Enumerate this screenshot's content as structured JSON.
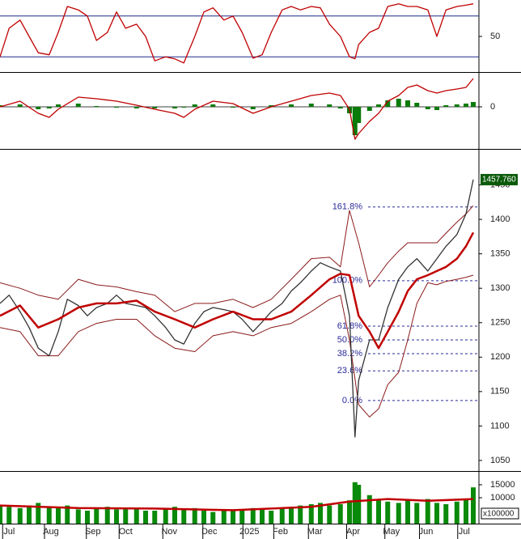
{
  "chart_data": [
    {
      "type": "line",
      "xlim": [
        0,
        262
      ],
      "ylim": [
        0,
        100
      ],
      "yticks": [
        50
      ],
      "hlines": [
        20,
        80
      ],
      "hline_color": "#1f2a8c",
      "series": [
        {
          "kind": "line",
          "color": "#c00000",
          "x": [
            0,
            5,
            11,
            16,
            21,
            27,
            32,
            37,
            43,
            48,
            53,
            59,
            64,
            69,
            75,
            80,
            85,
            91,
            96,
            101,
            107,
            112,
            117,
            123,
            128,
            133,
            139,
            144,
            149,
            155,
            160,
            165,
            171,
            176,
            181,
            187,
            192,
            195,
            197,
            203,
            208,
            213,
            219,
            224,
            229,
            235,
            240,
            245,
            251,
            256,
            260
          ],
          "values": [
            20,
            62,
            74,
            50,
            26,
            23,
            56,
            94,
            89,
            80,
            44,
            56,
            86,
            62,
            68,
            50,
            14,
            20,
            17,
            11,
            50,
            86,
            92,
            74,
            80,
            56,
            18,
            23,
            56,
            89,
            94,
            89,
            94,
            92,
            68,
            50,
            20,
            17,
            38,
            56,
            62,
            94,
            98,
            94,
            94,
            89,
            50,
            89,
            94,
            96,
            98
          ]
        }
      ]
    },
    {
      "type": "combo",
      "xlim": [
        0,
        262
      ],
      "ylim": [
        -50,
        40
      ],
      "yticks": [
        0
      ],
      "series": [
        {
          "kind": "bar",
          "color": "#0a7a0a",
          "x": [
            0,
            11,
            21,
            27,
            32,
            43,
            53,
            64,
            75,
            85,
            96,
            101,
            107,
            117,
            128,
            139,
            149,
            160,
            171,
            181,
            187,
            192,
            195,
            197,
            203,
            208,
            213,
            219,
            224,
            229,
            235,
            240,
            245,
            251,
            256,
            260
          ],
          "values": [
            2,
            3,
            -3,
            -2,
            3,
            4,
            1,
            -1,
            -2,
            -2,
            -2,
            -1,
            3,
            3,
            -1,
            -3,
            2,
            3,
            4,
            3,
            -2,
            -8,
            -35,
            -20,
            -5,
            3,
            8,
            10,
            8,
            5,
            -3,
            -4,
            2,
            3,
            4,
            6
          ]
        },
        {
          "kind": "line",
          "color": "#c00000",
          "x": [
            0,
            11,
            21,
            27,
            32,
            43,
            53,
            64,
            75,
            85,
            96,
            101,
            107,
            117,
            128,
            139,
            149,
            160,
            171,
            181,
            187,
            192,
            195,
            197,
            203,
            208,
            213,
            219,
            224,
            229,
            235,
            240,
            245,
            251,
            256,
            260
          ],
          "values": [
            0,
            7,
            -8,
            -13,
            -3,
            12,
            10,
            7,
            2,
            -3,
            -8,
            -13,
            -3,
            7,
            4,
            -8,
            0,
            7,
            14,
            17,
            14,
            -3,
            -40,
            -33,
            -18,
            -8,
            7,
            14,
            24,
            27,
            20,
            17,
            20,
            22,
            24,
            35
          ]
        }
      ]
    },
    {
      "type": "line",
      "xlim": [
        0,
        262
      ],
      "ylim": [
        1037,
        1500
      ],
      "yticks": [
        1050,
        1100,
        1150,
        1200,
        1250,
        1300,
        1350,
        1400,
        1450
      ],
      "last_label": {
        "value": 1457.76,
        "label": "1457.760"
      },
      "fib_color": "#2a2a9a",
      "fib_levels": [
        {
          "value": 1418,
          "label": "161.8%"
        },
        {
          "value": 1311,
          "label": "100.0%"
        },
        {
          "value": 1245,
          "label": "61.8%"
        },
        {
          "value": 1225,
          "label": "50.0%"
        },
        {
          "value": 1205,
          "label": "38.2%"
        },
        {
          "value": 1180,
          "label": "23.6%"
        },
        {
          "value": 1137,
          "label": "0.0%"
        }
      ],
      "series": [
        {
          "kind": "thin",
          "color": "#8b1a1a",
          "x": [
            0,
            11,
            21,
            32,
            43,
            53,
            64,
            75,
            85,
            96,
            107,
            117,
            128,
            139,
            149,
            160,
            171,
            181,
            187,
            192,
            197,
            203,
            208,
            213,
            219,
            224,
            229,
            235,
            240,
            245,
            251,
            256,
            260
          ],
          "values": [
            1308,
            1300,
            1290,
            1284,
            1313,
            1305,
            1302,
            1295,
            1290,
            1266,
            1278,
            1278,
            1284,
            1272,
            1284,
            1313,
            1343,
            1345,
            1331,
            1413,
            1366,
            1302,
            1319,
            1337,
            1354,
            1366,
            1366,
            1366,
            1366,
            1380,
            1396,
            1408,
            1420
          ]
        },
        {
          "kind": "thin",
          "color": "#8b1a1a",
          "x": [
            0,
            11,
            21,
            32,
            43,
            53,
            64,
            75,
            85,
            96,
            107,
            117,
            128,
            139,
            149,
            160,
            171,
            181,
            187,
            192,
            197,
            203,
            208,
            213,
            219,
            224,
            229,
            235,
            240,
            245,
            251,
            256,
            260
          ],
          "values": [
            1243,
            1237,
            1202,
            1202,
            1237,
            1249,
            1255,
            1255,
            1231,
            1213,
            1208,
            1231,
            1237,
            1231,
            1243,
            1249,
            1266,
            1284,
            1290,
            1225,
            1131,
            1113,
            1125,
            1160,
            1178,
            1225,
            1278,
            1308,
            1305,
            1310,
            1313,
            1316,
            1319
          ]
        },
        {
          "kind": "line",
          "color": "#333333",
          "x": [
            0,
            5,
            11,
            16,
            21,
            27,
            32,
            37,
            43,
            48,
            53,
            59,
            64,
            69,
            75,
            80,
            85,
            91,
            96,
            101,
            107,
            112,
            117,
            123,
            128,
            133,
            139,
            144,
            149,
            155,
            160,
            165,
            171,
            176,
            181,
            187,
            192,
            195,
            197,
            203,
            208,
            213,
            219,
            224,
            229,
            235,
            240,
            245,
            251,
            256,
            260
          ],
          "values": [
            1278,
            1290,
            1266,
            1243,
            1213,
            1202,
            1237,
            1284,
            1275,
            1260,
            1272,
            1278,
            1290,
            1278,
            1275,
            1272,
            1260,
            1243,
            1225,
            1219,
            1249,
            1266,
            1272,
            1269,
            1266,
            1255,
            1237,
            1251,
            1266,
            1278,
            1296,
            1308,
            1325,
            1337,
            1331,
            1325,
            1260,
            1084,
            1166,
            1225,
            1225,
            1272,
            1313,
            1331,
            1343,
            1325,
            1343,
            1361,
            1378,
            1408,
            1457.76
          ]
        },
        {
          "kind": "thick",
          "color": "#c00000",
          "x": [
            0,
            11,
            21,
            32,
            43,
            53,
            64,
            75,
            85,
            96,
            107,
            117,
            128,
            139,
            149,
            160,
            171,
            181,
            187,
            192,
            197,
            203,
            208,
            213,
            219,
            224,
            229,
            235,
            240,
            245,
            251,
            256,
            260
          ],
          "values": [
            1260,
            1275,
            1243,
            1255,
            1272,
            1278,
            1278,
            1282,
            1266,
            1255,
            1243,
            1255,
            1266,
            1255,
            1255,
            1266,
            1290,
            1313,
            1321,
            1319,
            1260,
            1237,
            1213,
            1237,
            1266,
            1296,
            1313,
            1319,
            1325,
            1331,
            1343,
            1361,
            1381
          ]
        }
      ]
    },
    {
      "type": "bar",
      "xlim": [
        0,
        262
      ],
      "ylim": [
        0,
        18000
      ],
      "yticks": [
        15000,
        10000
      ],
      "unit_label": "x100000",
      "xticks": [
        {
          "value": 5,
          "label": "Jul"
        },
        {
          "value": 28,
          "label": "Aug"
        },
        {
          "value": 51,
          "label": "Sep"
        },
        {
          "value": 69,
          "label": "Oct"
        },
        {
          "value": 93,
          "label": "Nov"
        },
        {
          "value": 115,
          "label": "Dec"
        },
        {
          "value": 137,
          "label": "2025"
        },
        {
          "value": 154,
          "label": "Feb"
        },
        {
          "value": 173,
          "label": "Mar"
        },
        {
          "value": 194,
          "label": "Apr"
        },
        {
          "value": 215,
          "label": "May"
        },
        {
          "value": 234,
          "label": "Jun"
        },
        {
          "value": 255,
          "label": "Jul"
        }
      ],
      "series": [
        {
          "kind": "bar",
          "color": "#0a8a0a",
          "x": [
            0,
            5,
            11,
            16,
            21,
            27,
            32,
            37,
            43,
            48,
            53,
            59,
            64,
            69,
            75,
            80,
            85,
            91,
            96,
            101,
            107,
            112,
            117,
            123,
            128,
            133,
            139,
            144,
            149,
            155,
            160,
            165,
            171,
            176,
            181,
            187,
            192,
            195,
            197,
            203,
            208,
            213,
            219,
            224,
            229,
            235,
            240,
            245,
            251,
            256,
            260
          ],
          "values": [
            7000,
            6500,
            6000,
            7000,
            8000,
            6500,
            6000,
            7000,
            5500,
            5000,
            6000,
            6500,
            5500,
            6000,
            5500,
            5000,
            5000,
            6000,
            6500,
            5500,
            6000,
            5000,
            4500,
            5000,
            5500,
            5000,
            6000,
            5500,
            5000,
            6000,
            6500,
            7000,
            7500,
            8000,
            7000,
            7500,
            9000,
            16000,
            15000,
            11000,
            9000,
            8500,
            8000,
            9000,
            8000,
            9500,
            8000,
            7500,
            8500,
            9500,
            14000
          ]
        },
        {
          "kind": "thick",
          "color": "#c00000",
          "x": [
            0,
            43,
            85,
            128,
            171,
            192,
            213,
            235,
            260
          ],
          "values": [
            7000,
            6000,
            5800,
            5200,
            6500,
            8500,
            9500,
            8800,
            9500
          ]
        }
      ]
    }
  ]
}
